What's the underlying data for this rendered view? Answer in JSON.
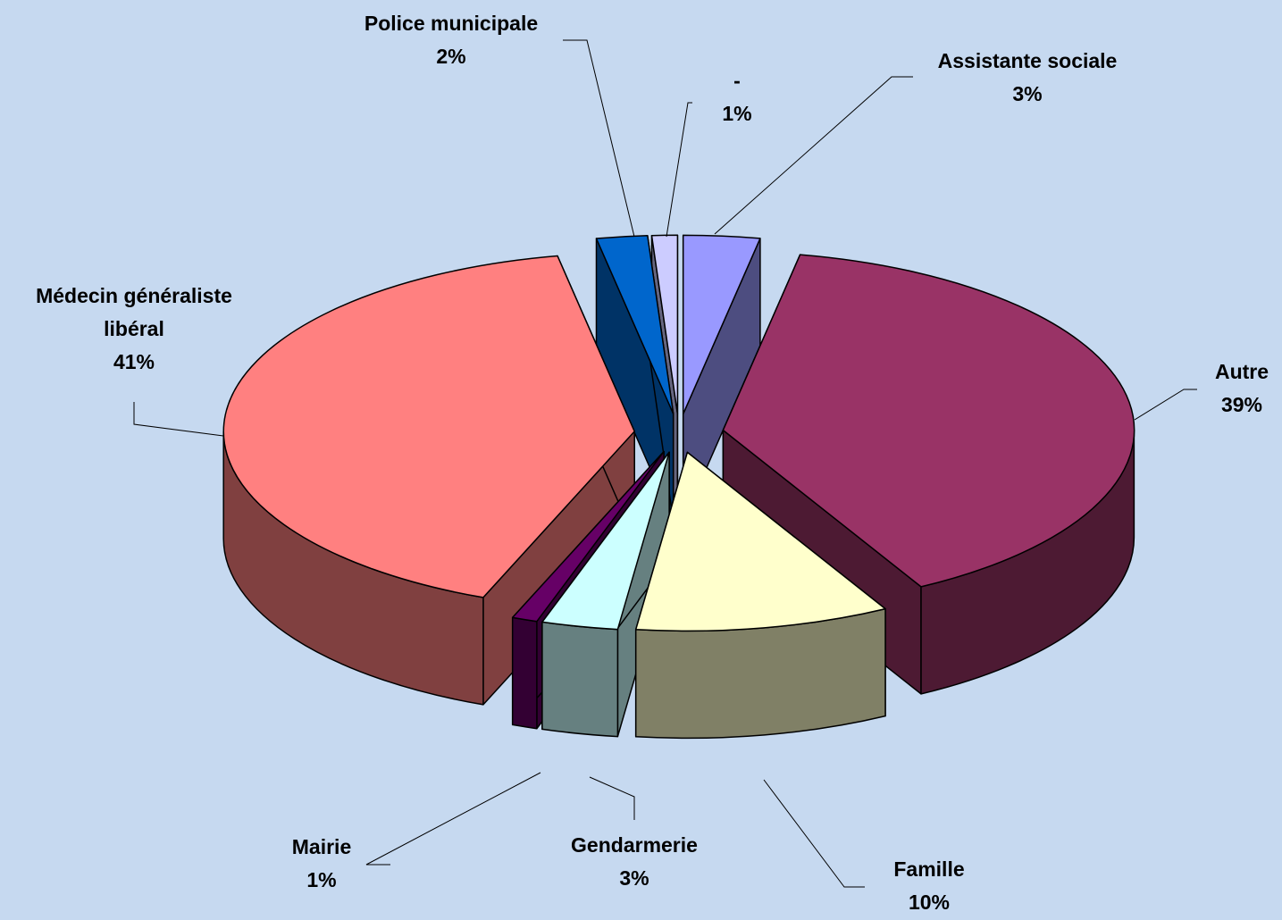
{
  "chart_data": {
    "type": "pie3d",
    "categories": [
      "Assistante sociale",
      "Autre",
      "Famille",
      "Gendarmerie",
      "Mairie",
      "Médecin généraliste libéral",
      "Police municipale",
      "-"
    ],
    "values": [
      3,
      39,
      10,
      3,
      1,
      41,
      2,
      1
    ],
    "value_labels": [
      "3%",
      "39%",
      "10%",
      "3%",
      "1%",
      "41%",
      "2%",
      "1%"
    ],
    "colors": [
      "#9999ff",
      "#993366",
      "#ffffcc",
      "#ccffff",
      "#660066",
      "#ff8080",
      "#0066cc",
      "#ccccff"
    ]
  }
}
